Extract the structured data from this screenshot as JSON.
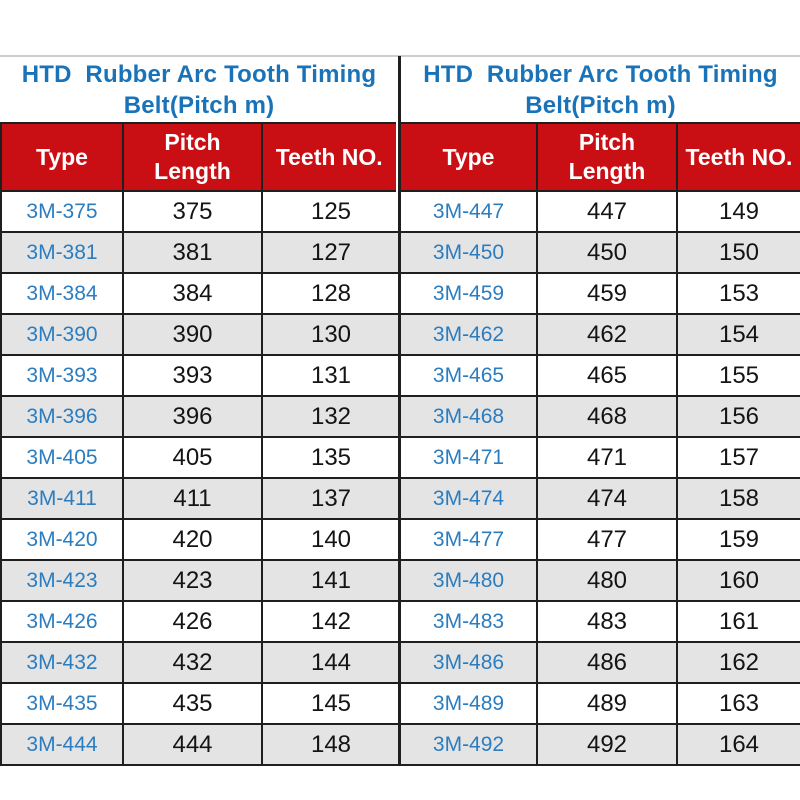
{
  "colors": {
    "header_red": "#c90e14",
    "title_blue": "#1973b9",
    "type_blue": "#2b7dc0",
    "row_alt_gray": "#e4e4e4",
    "grid_black": "#1f1f1f",
    "top_rule_gray": "#cdcdcd"
  },
  "panels": [
    {
      "title": "HTD  Rubber Arc Tooth Timing\nBelt(Pitch m)",
      "columns": [
        "Type",
        "Pitch\nLength",
        "Teeth NO."
      ],
      "rows": [
        [
          "3M-375",
          "375",
          "125"
        ],
        [
          "3M-381",
          "381",
          "127"
        ],
        [
          "3M-384",
          "384",
          "128"
        ],
        [
          "3M-390",
          "390",
          "130"
        ],
        [
          "3M-393",
          "393",
          "131"
        ],
        [
          "3M-396",
          "396",
          "132"
        ],
        [
          "3M-405",
          "405",
          "135"
        ],
        [
          "3M-411",
          "411",
          "137"
        ],
        [
          "3M-420",
          "420",
          "140"
        ],
        [
          "3M-423",
          "423",
          "141"
        ],
        [
          "3M-426",
          "426",
          "142"
        ],
        [
          "3M-432",
          "432",
          "144"
        ],
        [
          "3M-435",
          "435",
          "145"
        ],
        [
          "3M-444",
          "444",
          "148"
        ]
      ]
    },
    {
      "title": "HTD  Rubber Arc Tooth Timing\nBelt(Pitch m)",
      "columns": [
        "Type",
        "Pitch\nLength",
        "Teeth NO."
      ],
      "rows": [
        [
          "3M-447",
          "447",
          "149"
        ],
        [
          "3M-450",
          "450",
          "150"
        ],
        [
          "3M-459",
          "459",
          "153"
        ],
        [
          "3M-462",
          "462",
          "154"
        ],
        [
          "3M-465",
          "465",
          "155"
        ],
        [
          "3M-468",
          "468",
          "156"
        ],
        [
          "3M-471",
          "471",
          "157"
        ],
        [
          "3M-474",
          "474",
          "158"
        ],
        [
          "3M-477",
          "477",
          "159"
        ],
        [
          "3M-480",
          "480",
          "160"
        ],
        [
          "3M-483",
          "483",
          "161"
        ],
        [
          "3M-486",
          "486",
          "162"
        ],
        [
          "3M-489",
          "489",
          "163"
        ],
        [
          "3M-492",
          "492",
          "164"
        ]
      ]
    }
  ]
}
